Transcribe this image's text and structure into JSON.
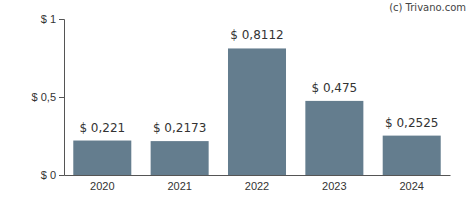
{
  "chart_data": {
    "type": "bar",
    "annotations": [
      "(c) Trivano.com"
    ],
    "categories": [
      "2020",
      "2021",
      "2022",
      "2023",
      "2024"
    ],
    "values": [
      0.221,
      0.2173,
      0.8112,
      0.475,
      0.2525
    ],
    "value_labels": [
      "$ 0,221",
      "$ 0,2173",
      "$ 0,8112",
      "$ 0,475",
      "$ 0,2525"
    ],
    "data_labels": true,
    "color": "#647d8e",
    "ylim": [
      0,
      1
    ],
    "yticks": [
      {
        "value": 0,
        "label": "$ 0"
      },
      {
        "value": 0.5,
        "label": "$ 0,5"
      },
      {
        "value": 1,
        "label": "$ 1"
      }
    ],
    "grid": false
  }
}
